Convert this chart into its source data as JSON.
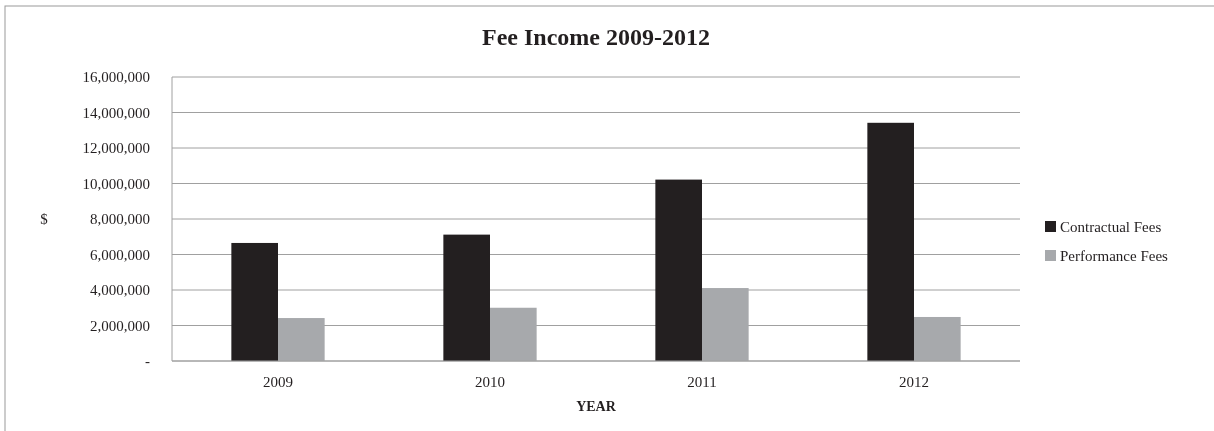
{
  "chart_data": {
    "type": "bar",
    "title": "Fee Income 2009-2012",
    "xlabel": "YEAR",
    "ylabel": "$",
    "categories": [
      "2009",
      "2010",
      "2011",
      "2012"
    ],
    "series": [
      {
        "name": "Contractual Fees",
        "color": "#231f20",
        "values": [
          6650000,
          7120000,
          10220000,
          13420000
        ]
      },
      {
        "name": "Performance Fees",
        "color": "#a7a9ac",
        "values": [
          2420000,
          3000000,
          4110000,
          2480000
        ]
      }
    ],
    "ylim": [
      0,
      16000000
    ],
    "yticks": [
      {
        "value": 0,
        "label": "-"
      },
      {
        "value": 2000000,
        "label": "2,000,000"
      },
      {
        "value": 4000000,
        "label": "4,000,000"
      },
      {
        "value": 6000000,
        "label": "6,000,000"
      },
      {
        "value": 8000000,
        "label": "8,000,000"
      },
      {
        "value": 10000000,
        "label": "10,000,000"
      },
      {
        "value": 12000000,
        "label": "12,000,000"
      },
      {
        "value": 14000000,
        "label": "14,000,000"
      },
      {
        "value": 16000000,
        "label": "16,000,000"
      }
    ],
    "grid": "y",
    "legend": "right"
  }
}
